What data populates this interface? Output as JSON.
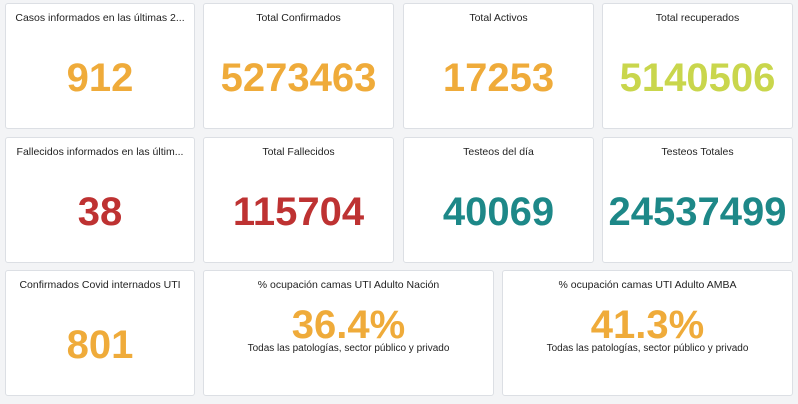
{
  "cards": [
    {
      "title": "Casos informados en las últimas 2...",
      "value": "912"
    },
    {
      "title": "Total Confirmados",
      "value": "5273463"
    },
    {
      "title": "Total Activos",
      "value": "17253"
    },
    {
      "title": "Total recuperados",
      "value": "5140506"
    },
    {
      "title": "Fallecidos informados en las últim...",
      "value": "38"
    },
    {
      "title": "Total Fallecidos",
      "value": "115704"
    },
    {
      "title": "Testeos del día",
      "value": "40069"
    },
    {
      "title": "Testeos Totales",
      "value": "24537499"
    },
    {
      "title": "Confirmados Covid internados UTI",
      "value": "801"
    },
    {
      "title": "% ocupación camas UTI Adulto Nación",
      "value": "36.4%",
      "subtitle": "Todas las patologías, sector público y privado"
    },
    {
      "title": "% ocupación camas UTI Adulto AMBA",
      "value": "41.3%",
      "subtitle": "Todas las patologías, sector público y privado"
    }
  ]
}
